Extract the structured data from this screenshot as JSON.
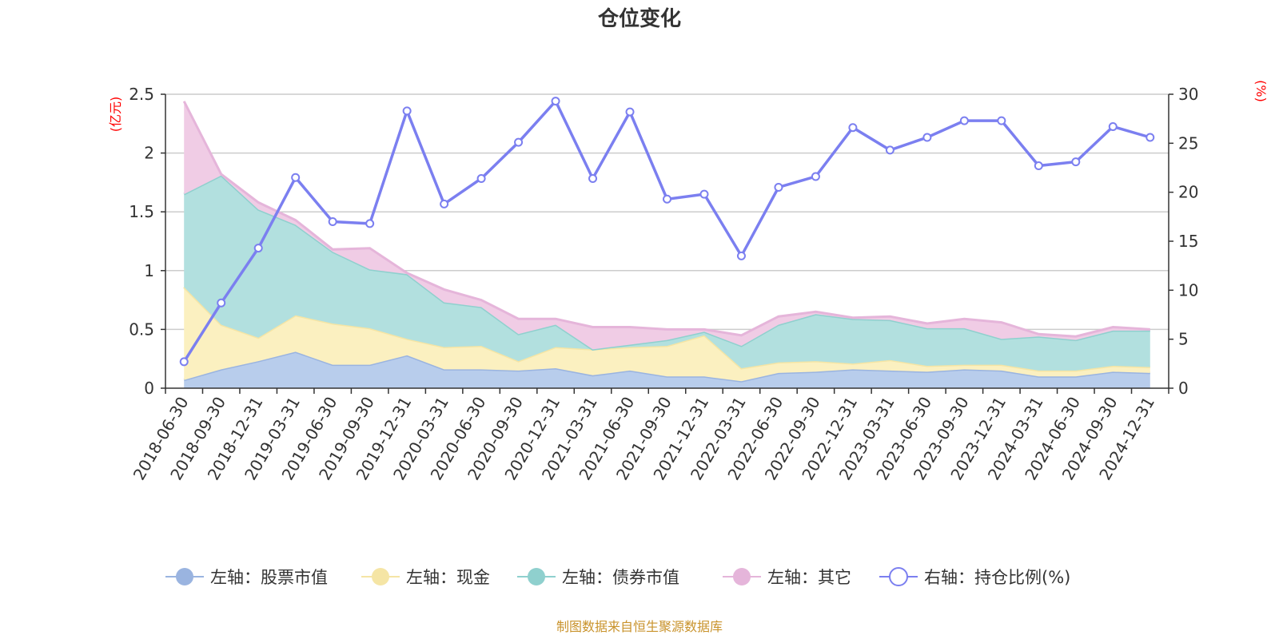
{
  "chart_data": {
    "type": "area",
    "title": "仓位变化",
    "left_axis": {
      "unit": "(亿元)",
      "ylim": [
        0,
        2.5
      ],
      "ticks": [
        "0",
        "0.5",
        "1",
        "1.5",
        "2",
        "2.5"
      ]
    },
    "right_axis": {
      "unit": "(%)",
      "ylim": [
        0,
        30
      ],
      "ticks": [
        "0",
        "5",
        "10",
        "15",
        "20",
        "25",
        "30"
      ]
    },
    "categories": [
      "2018-06-30",
      "2018-09-30",
      "2018-12-31",
      "2019-03-31",
      "2019-06-30",
      "2019-09-30",
      "2019-12-31",
      "2020-03-31",
      "2020-06-30",
      "2020-09-30",
      "2020-12-31",
      "2021-03-31",
      "2021-06-30",
      "2021-09-30",
      "2021-12-31",
      "2022-03-31",
      "2022-06-30",
      "2022-09-30",
      "2022-12-31",
      "2023-03-31",
      "2023-06-30",
      "2023-09-30",
      "2023-12-31",
      "2024-03-31",
      "2024-06-30",
      "2024-09-30",
      "2024-12-31"
    ],
    "grid": true,
    "legend_position": "bottom",
    "series": [
      {
        "name": "左轴：股票市值",
        "kind": "area",
        "axis": "left",
        "color": "#9ab4e0",
        "fill": "#b8cdec",
        "values": [
          0.07,
          0.16,
          0.23,
          0.31,
          0.2,
          0.2,
          0.28,
          0.16,
          0.16,
          0.15,
          0.17,
          0.11,
          0.15,
          0.1,
          0.1,
          0.06,
          0.13,
          0.14,
          0.16,
          0.15,
          0.14,
          0.16,
          0.15,
          0.1,
          0.1,
          0.14,
          0.13
        ]
      },
      {
        "name": "左轴：现金",
        "kind": "area",
        "axis": "left",
        "color": "#f5e5a5",
        "fill": "#fbf0c0",
        "values": [
          0.79,
          0.38,
          0.2,
          0.31,
          0.35,
          0.31,
          0.14,
          0.19,
          0.2,
          0.08,
          0.18,
          0.22,
          0.2,
          0.26,
          0.35,
          0.11,
          0.09,
          0.09,
          0.05,
          0.09,
          0.05,
          0.04,
          0.05,
          0.05,
          0.05,
          0.05,
          0.05
        ]
      },
      {
        "name": "左轴：债券市值",
        "kind": "area",
        "axis": "left",
        "color": "#8fd0ce",
        "fill": "#b2e0df",
        "values": [
          0.79,
          1.27,
          1.09,
          0.77,
          0.61,
          0.5,
          0.55,
          0.38,
          0.33,
          0.23,
          0.19,
          0.0,
          0.02,
          0.05,
          0.03,
          0.19,
          0.32,
          0.4,
          0.38,
          0.34,
          0.32,
          0.31,
          0.22,
          0.29,
          0.26,
          0.3,
          0.31
        ]
      },
      {
        "name": "左轴：其它",
        "kind": "area",
        "axis": "left",
        "color": "#e5b5da",
        "fill": "#f0cce5",
        "values": [
          0.79,
          0.01,
          0.06,
          0.04,
          0.02,
          0.18,
          0.01,
          0.11,
          0.06,
          0.13,
          0.05,
          0.19,
          0.15,
          0.09,
          0.02,
          0.09,
          0.07,
          0.02,
          0.01,
          0.03,
          0.04,
          0.08,
          0.14,
          0.02,
          0.03,
          0.03,
          0.01
        ]
      },
      {
        "name": "右轴：持仓比例(%)",
        "kind": "line",
        "axis": "right",
        "color": "#7b7ff0",
        "values": [
          2.7,
          8.7,
          14.3,
          21.5,
          17.0,
          16.8,
          28.3,
          18.8,
          21.4,
          25.1,
          29.3,
          21.4,
          28.2,
          19.3,
          19.8,
          13.5,
          20.5,
          21.6,
          26.6,
          24.3,
          25.6,
          27.3,
          27.3,
          22.7,
          23.1,
          26.7,
          25.6
        ]
      }
    ]
  },
  "source_text": "制图数据来自恒生聚源数据库"
}
